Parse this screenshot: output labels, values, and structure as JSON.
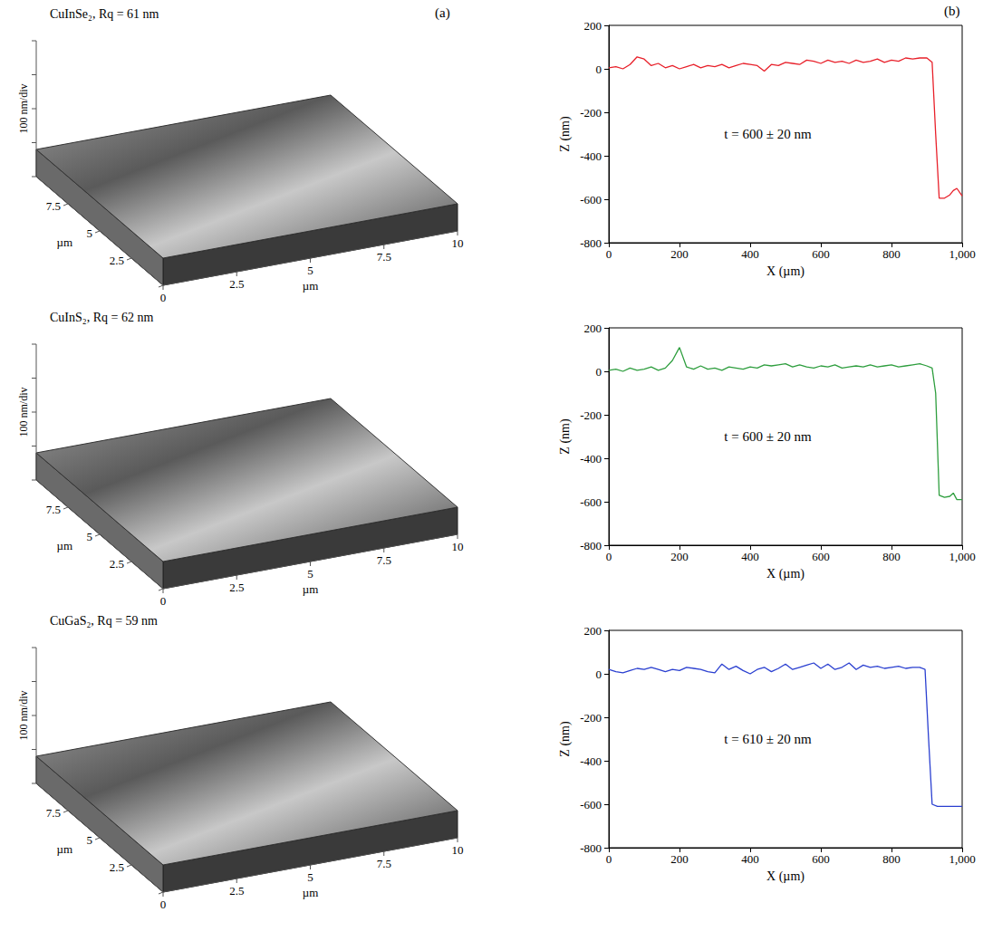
{
  "chart_data": [
    {
      "type": "surface",
      "panel": "(a)",
      "title": "CuInSe₂, Rq = 61 nm",
      "z_label": "100 nm/div",
      "x_label": "µm",
      "y_label": "µm",
      "xlim": [
        0,
        10
      ],
      "ylim": [
        0,
        10
      ],
      "xticks": [
        0,
        2.5,
        5,
        7.5,
        10
      ],
      "yticks": [
        0,
        2.5,
        5,
        7.5
      ]
    },
    {
      "type": "surface",
      "title": "CuInS₂, Rq = 62 nm",
      "z_label": "100 nm/div",
      "x_label": "µm",
      "y_label": "µm",
      "xlim": [
        0,
        10
      ],
      "ylim": [
        0,
        10
      ],
      "xticks": [
        0,
        2.5,
        5,
        7.5,
        10
      ],
      "yticks": [
        0,
        2.5,
        5,
        7.5
      ]
    },
    {
      "type": "surface",
      "title": "CuGaS₂, Rq = 59 nm",
      "z_label": "100 nm/div",
      "x_label": "µm",
      "y_label": "µm",
      "xlim": [
        0,
        10
      ],
      "ylim": [
        0,
        10
      ],
      "xticks": [
        0,
        2.5,
        5,
        7.5,
        10
      ],
      "yticks": [
        0,
        2.5,
        5,
        7.5
      ]
    },
    {
      "type": "line",
      "panel": "(b)",
      "annotation": "t = 600 ± 20 nm",
      "color": "#e8202a",
      "x_label": "X (µm)",
      "y_label": "Z (nm)",
      "xlim": [
        0,
        1000
      ],
      "xticks": [
        0,
        200,
        400,
        600,
        800,
        1000
      ],
      "ylim": [
        -800,
        200
      ],
      "yticks": [
        -800,
        -600,
        -400,
        -200,
        0,
        200
      ],
      "x": [
        0,
        20,
        40,
        60,
        80,
        100,
        120,
        140,
        160,
        180,
        200,
        220,
        240,
        260,
        280,
        300,
        320,
        340,
        360,
        380,
        400,
        420,
        440,
        460,
        480,
        500,
        520,
        540,
        560,
        580,
        600,
        620,
        640,
        660,
        680,
        700,
        720,
        740,
        760,
        780,
        800,
        820,
        840,
        860,
        880,
        900,
        915,
        925,
        935,
        950,
        965,
        975,
        985,
        1000
      ],
      "values": [
        5,
        10,
        0,
        20,
        55,
        45,
        15,
        25,
        5,
        15,
        0,
        10,
        20,
        5,
        15,
        10,
        20,
        5,
        15,
        25,
        20,
        15,
        -10,
        20,
        15,
        30,
        25,
        20,
        40,
        35,
        25,
        40,
        30,
        35,
        25,
        40,
        30,
        35,
        45,
        30,
        40,
        35,
        50,
        45,
        50,
        50,
        30,
        -300,
        -595,
        -595,
        -580,
        -560,
        -550,
        -585
      ]
    },
    {
      "type": "line",
      "annotation": "t = 600 ± 20 nm",
      "color": "#2e9e3e",
      "x_label": "X (µm)",
      "y_label": "Z (nm)",
      "xlim": [
        0,
        1000
      ],
      "xticks": [
        0,
        200,
        400,
        600,
        800,
        1000
      ],
      "ylim": [
        -800,
        200
      ],
      "yticks": [
        -800,
        -600,
        -400,
        -200,
        0,
        200
      ],
      "x": [
        0,
        20,
        40,
        60,
        80,
        100,
        120,
        140,
        160,
        180,
        200,
        220,
        240,
        260,
        280,
        300,
        320,
        340,
        360,
        380,
        400,
        420,
        440,
        460,
        480,
        500,
        520,
        540,
        560,
        580,
        600,
        620,
        640,
        660,
        680,
        700,
        720,
        740,
        760,
        780,
        800,
        820,
        840,
        860,
        880,
        900,
        915,
        925,
        935,
        950,
        965,
        975,
        985,
        1000
      ],
      "values": [
        5,
        10,
        0,
        15,
        5,
        10,
        20,
        5,
        15,
        50,
        110,
        20,
        10,
        25,
        10,
        15,
        5,
        20,
        15,
        10,
        20,
        15,
        30,
        25,
        30,
        35,
        20,
        30,
        20,
        15,
        25,
        20,
        30,
        15,
        20,
        25,
        20,
        30,
        20,
        25,
        30,
        20,
        25,
        30,
        35,
        25,
        15,
        -100,
        -570,
        -580,
        -575,
        -560,
        -590,
        -590
      ]
    },
    {
      "type": "line",
      "annotation": "t = 610 ± 20 nm",
      "color": "#2a3fd0",
      "x_label": "X (µm)",
      "y_label": "Z (nm)",
      "xlim": [
        0,
        1000
      ],
      "xticks": [
        0,
        200,
        400,
        600,
        800,
        1000
      ],
      "ylim": [
        -800,
        200
      ],
      "yticks": [
        -800,
        -600,
        -400,
        -200,
        0,
        200
      ],
      "x": [
        0,
        20,
        40,
        60,
        80,
        100,
        120,
        140,
        160,
        180,
        200,
        220,
        240,
        260,
        280,
        300,
        320,
        340,
        360,
        380,
        400,
        420,
        440,
        460,
        480,
        500,
        520,
        540,
        560,
        580,
        600,
        620,
        640,
        660,
        680,
        700,
        720,
        740,
        760,
        780,
        800,
        820,
        840,
        860,
        880,
        895,
        905,
        915,
        930,
        960,
        1000
      ],
      "values": [
        20,
        10,
        5,
        15,
        25,
        20,
        30,
        20,
        10,
        20,
        15,
        30,
        25,
        20,
        10,
        5,
        45,
        20,
        35,
        15,
        0,
        20,
        30,
        10,
        25,
        45,
        20,
        30,
        40,
        50,
        25,
        45,
        20,
        30,
        50,
        20,
        40,
        30,
        35,
        25,
        30,
        35,
        25,
        30,
        30,
        20,
        -300,
        -600,
        -610,
        -610,
        -610
      ]
    }
  ]
}
